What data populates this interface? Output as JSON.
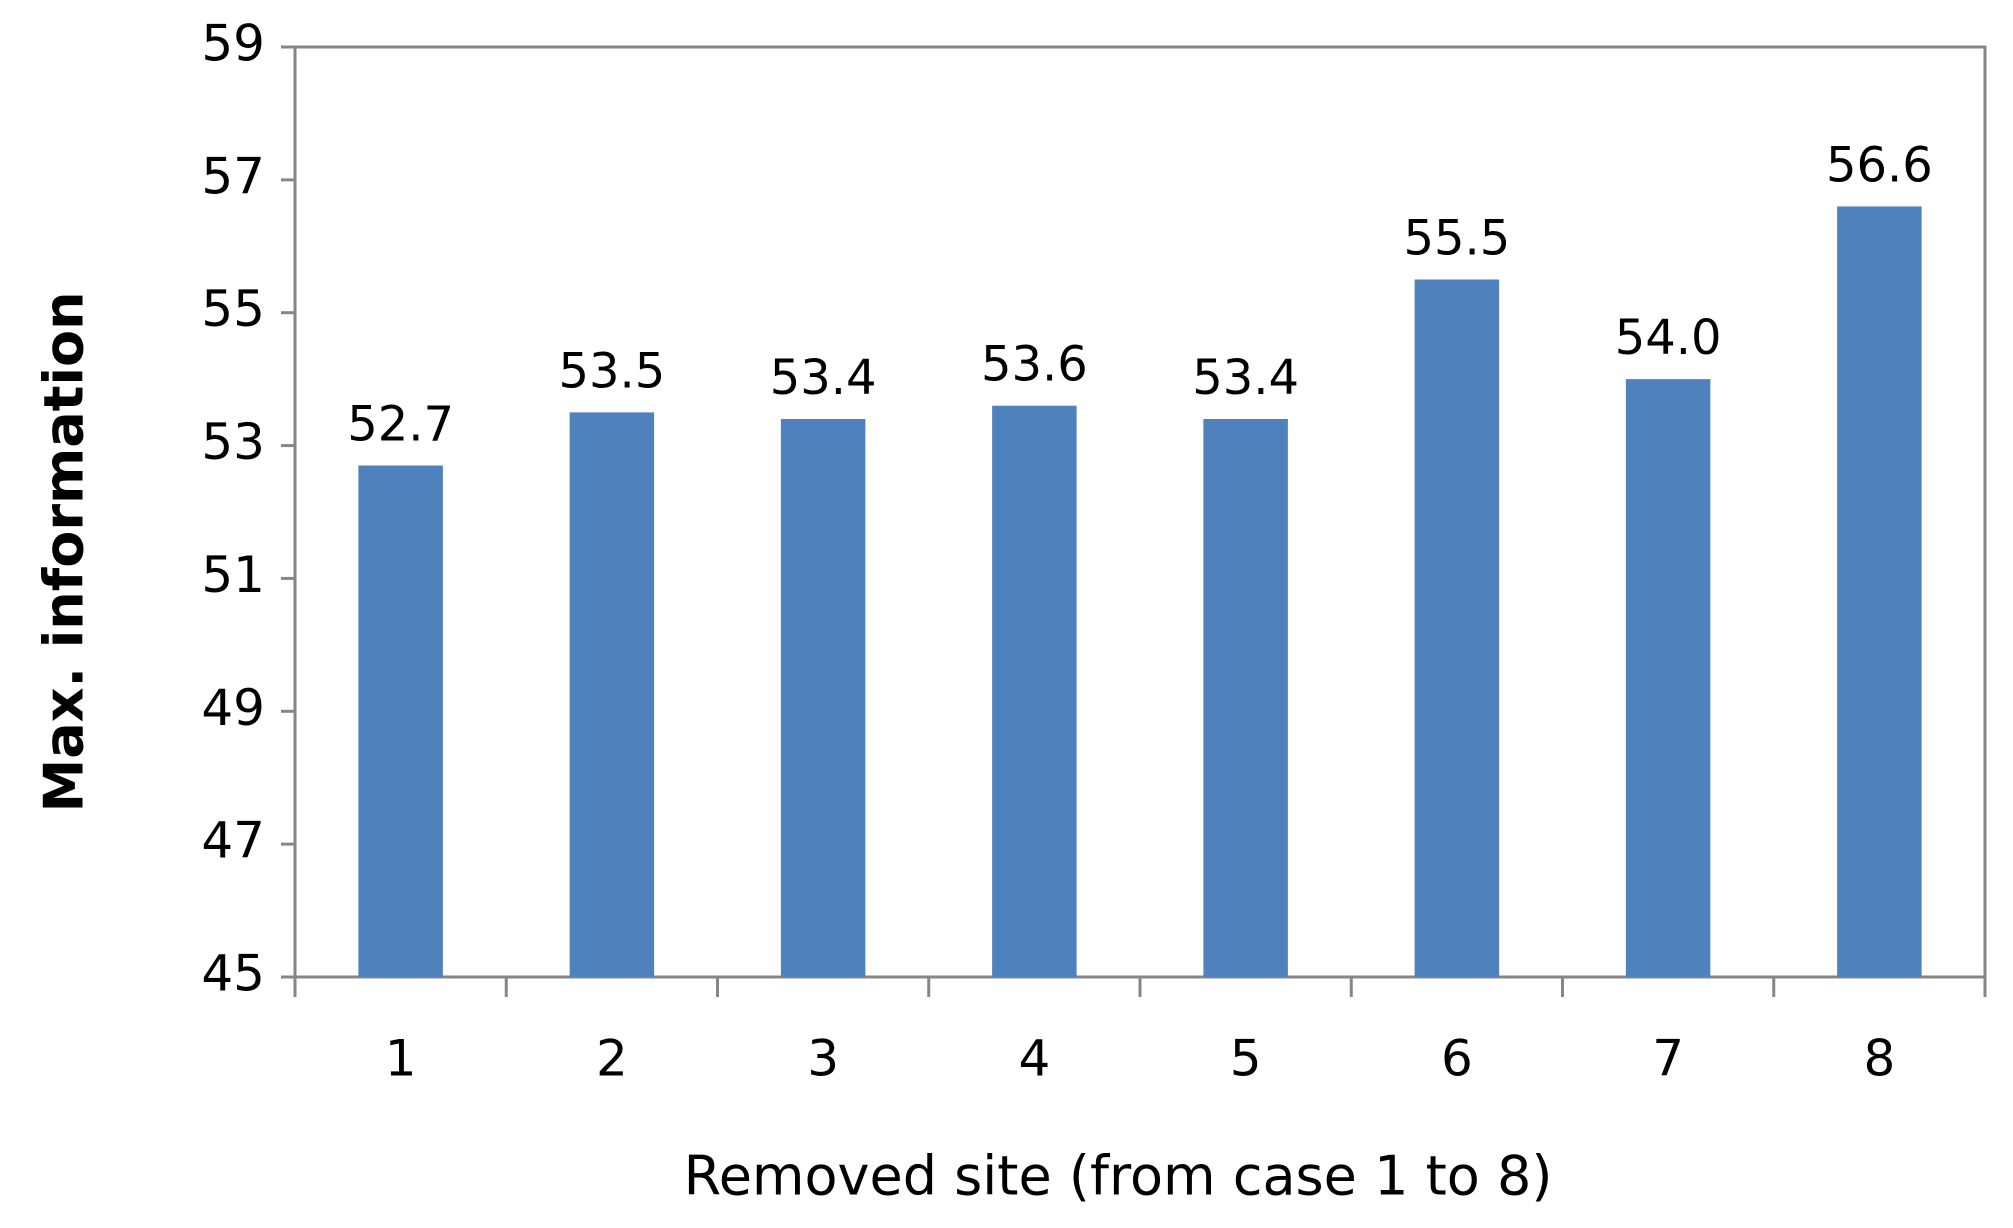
{
  "chart_data": {
    "type": "bar",
    "x_label": "Removed site (from case 1 to 8)",
    "y_label": "Max.  information",
    "categories": [
      "1",
      "2",
      "3",
      "4",
      "5",
      "6",
      "7",
      "8"
    ],
    "values": [
      52.7,
      53.5,
      53.4,
      53.6,
      53.4,
      55.5,
      54.0,
      56.6
    ],
    "value_labels": [
      "52.7",
      "53.5",
      "53.4",
      "53.6",
      "53.4",
      "55.5",
      "54.0",
      "56.6"
    ],
    "color": "#4f81bd",
    "ylim": [
      45,
      59
    ],
    "yticks": [
      45,
      47,
      49,
      51,
      53,
      55,
      57,
      59
    ],
    "grid": false
  }
}
